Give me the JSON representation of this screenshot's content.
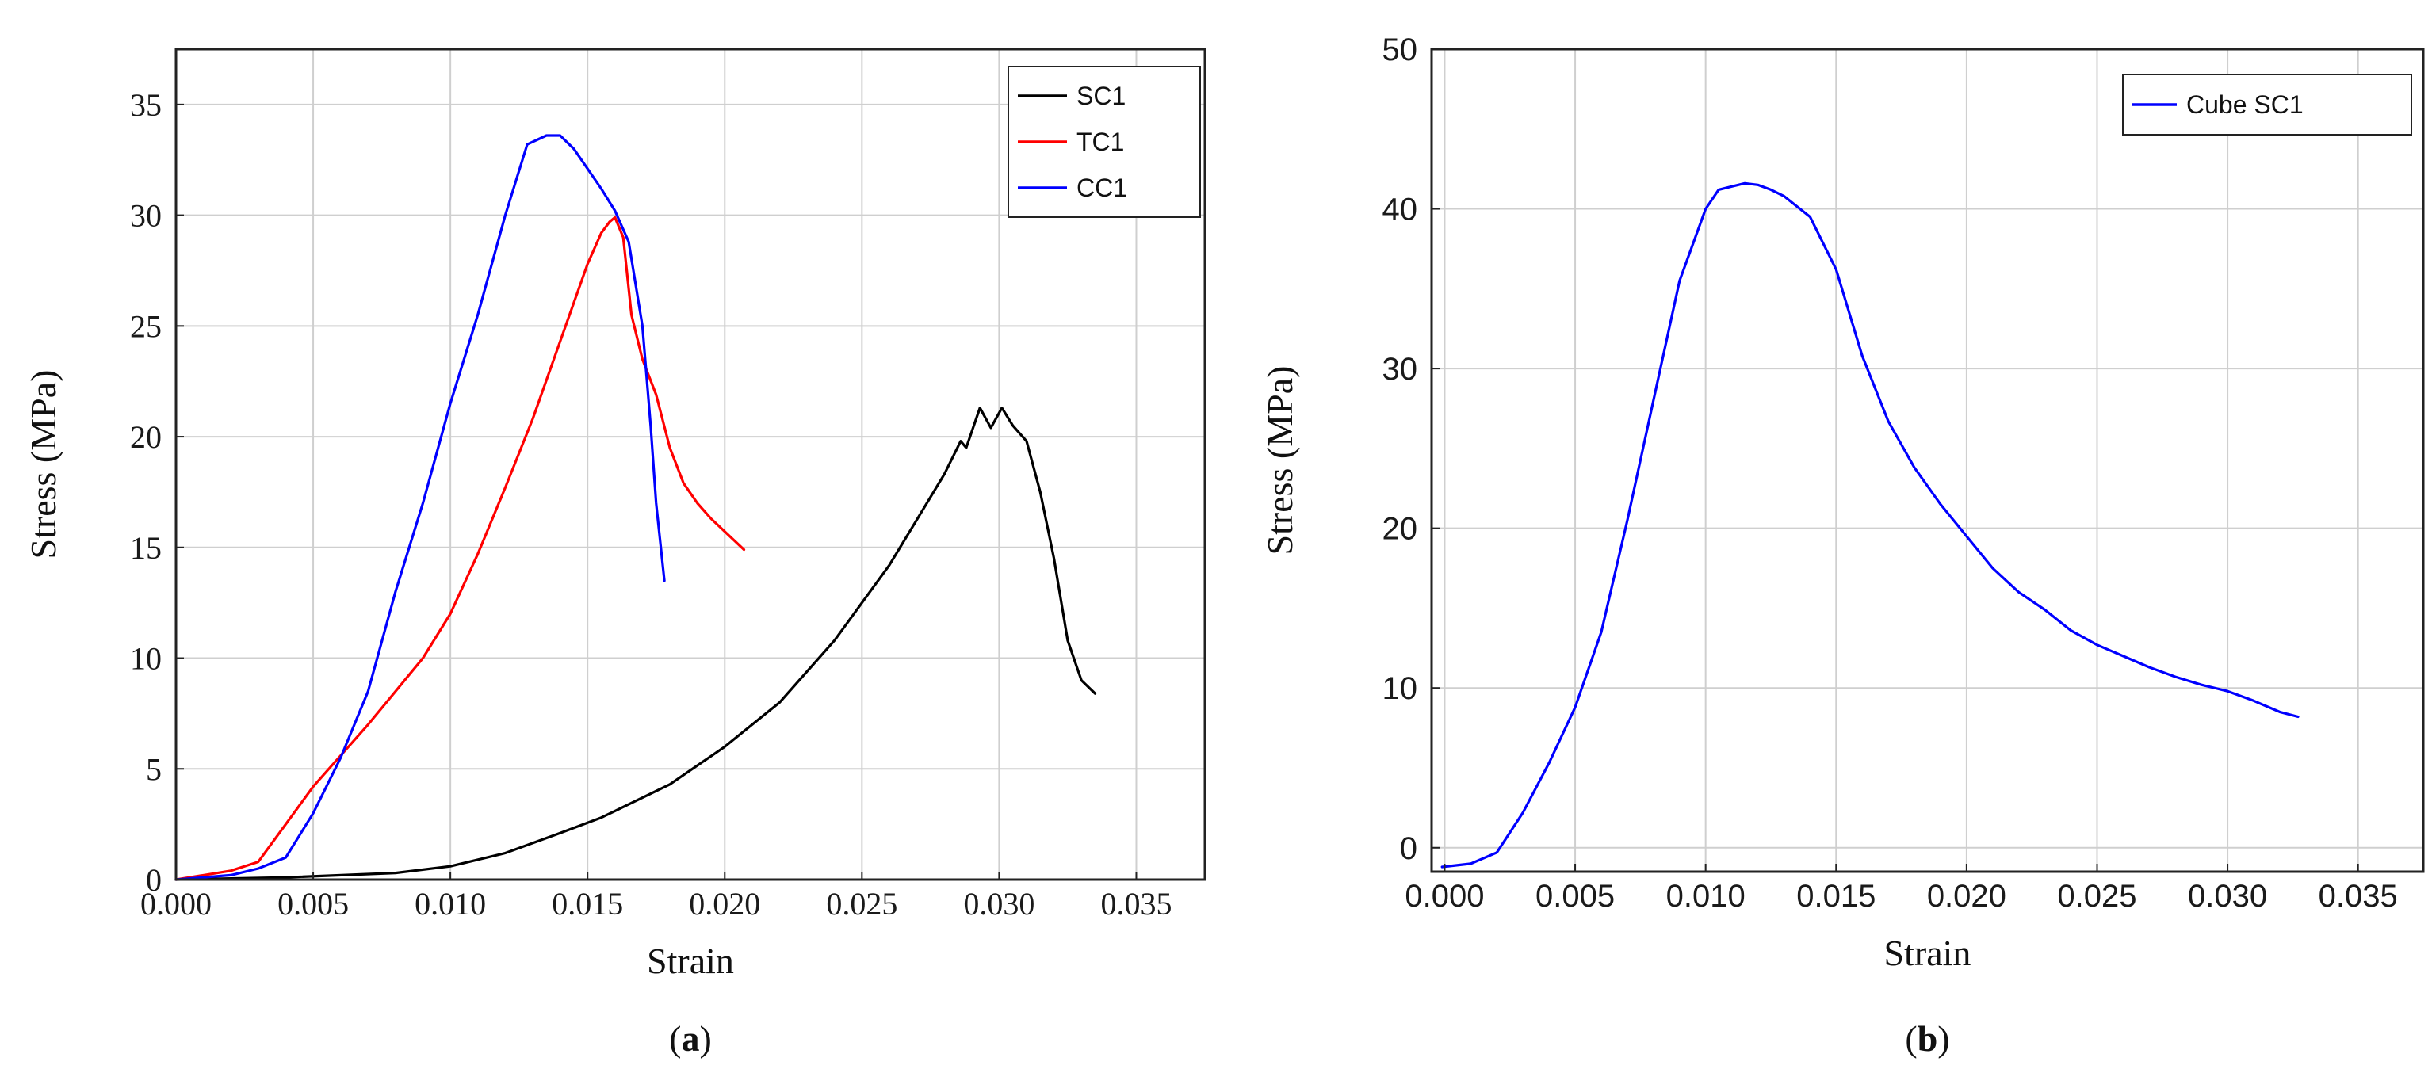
{
  "chart_data": [
    {
      "type": "line",
      "caption_open": "(",
      "caption_letter": "a",
      "caption_close": ")",
      "xlabel": "Strain",
      "ylabel": "Stress (MPa)",
      "xlim": [
        0,
        0.0375
      ],
      "ylim": [
        0,
        37.5
      ],
      "xticks": [
        "0.000",
        "0.005",
        "0.010",
        "0.015",
        "0.020",
        "0.025",
        "0.030",
        "0.035"
      ],
      "xtick_values": [
        0,
        0.005,
        0.01,
        0.015,
        0.02,
        0.025,
        0.03,
        0.035
      ],
      "yticks": [
        "0",
        "5",
        "10",
        "15",
        "20",
        "25",
        "30",
        "35"
      ],
      "ytick_values": [
        0,
        5,
        10,
        15,
        20,
        25,
        30,
        35
      ],
      "grid": true,
      "legend_position": "top-right",
      "series": [
        {
          "name": "SC1",
          "color": "#000000",
          "x": [
            0,
            0.004,
            0.008,
            0.01,
            0.012,
            0.014,
            0.0155,
            0.016,
            0.018,
            0.02,
            0.022,
            0.024,
            0.026,
            0.028,
            0.0286,
            0.0288,
            0.0293,
            0.0297,
            0.0301,
            0.0305,
            0.031,
            0.0315,
            0.032,
            0.0325,
            0.033,
            0.0335
          ],
          "y": [
            0,
            0.1,
            0.3,
            0.6,
            1.2,
            2.1,
            2.8,
            3.1,
            4.3,
            6.0,
            8.0,
            10.8,
            14.2,
            18.3,
            19.8,
            19.5,
            21.3,
            20.4,
            21.3,
            20.5,
            19.8,
            17.5,
            14.5,
            10.8,
            9.0,
            8.4
          ]
        },
        {
          "name": "TC1",
          "color": "#ff0000",
          "x": [
            0,
            0.001,
            0.002,
            0.003,
            0.004,
            0.005,
            0.006,
            0.007,
            0.008,
            0.009,
            0.01,
            0.011,
            0.012,
            0.013,
            0.014,
            0.015,
            0.0155,
            0.0158,
            0.016,
            0.0163,
            0.0166,
            0.017,
            0.0175,
            0.018,
            0.0185,
            0.019,
            0.0195,
            0.0207
          ],
          "y": [
            0,
            0.2,
            0.4,
            0.8,
            2.5,
            4.2,
            5.6,
            7.0,
            8.5,
            10.0,
            12.0,
            14.7,
            17.7,
            20.8,
            24.3,
            27.8,
            29.2,
            29.7,
            29.9,
            29.0,
            25.5,
            23.5,
            21.9,
            19.5,
            17.9,
            17.0,
            16.3,
            14.9
          ]
        },
        {
          "name": "CC1",
          "color": "#0000ff",
          "x": [
            0,
            0.002,
            0.003,
            0.004,
            0.005,
            0.006,
            0.007,
            0.008,
            0.009,
            0.01,
            0.011,
            0.012,
            0.0128,
            0.0135,
            0.014,
            0.0145,
            0.015,
            0.0155,
            0.016,
            0.0165,
            0.017,
            0.0173,
            0.0175,
            0.0178
          ],
          "y": [
            0,
            0.2,
            0.5,
            1.0,
            3.0,
            5.5,
            8.5,
            13.0,
            17.0,
            21.5,
            25.5,
            30.0,
            33.2,
            33.6,
            33.6,
            33.0,
            32.1,
            31.2,
            30.2,
            28.8,
            25.0,
            20.5,
            17.0,
            13.5
          ]
        }
      ]
    },
    {
      "type": "line",
      "caption_open": "(",
      "caption_letter": "b",
      "caption_close": ")",
      "xlabel": "Strain",
      "ylabel": "Stress (MPa)",
      "xlim": [
        -0.0005,
        0.0375
      ],
      "ylim": [
        -1.5,
        50
      ],
      "xticks": [
        "0.000",
        "0.005",
        "0.010",
        "0.015",
        "0.020",
        "0.025",
        "0.030",
        "0.035"
      ],
      "xtick_values": [
        0,
        0.005,
        0.01,
        0.015,
        0.02,
        0.025,
        0.03,
        0.035
      ],
      "yticks": [
        "0",
        "10",
        "20",
        "30",
        "40",
        "50"
      ],
      "ytick_values": [
        0,
        10,
        20,
        30,
        40,
        50
      ],
      "grid": true,
      "legend_position": "top-right",
      "series": [
        {
          "name": "Cube SC1",
          "color": "#0000ff",
          "x": [
            -0.0001,
            0.001,
            0.002,
            0.003,
            0.004,
            0.005,
            0.006,
            0.007,
            0.008,
            0.009,
            0.01,
            0.0105,
            0.011,
            0.0115,
            0.012,
            0.0125,
            0.013,
            0.014,
            0.015,
            0.016,
            0.017,
            0.018,
            0.019,
            0.02,
            0.021,
            0.022,
            0.023,
            0.024,
            0.025,
            0.026,
            0.027,
            0.028,
            0.029,
            0.03,
            0.031,
            0.032,
            0.0327
          ],
          "y": [
            -1.2,
            -1.0,
            -0.3,
            2.2,
            5.3,
            8.8,
            13.5,
            20.5,
            28.0,
            35.5,
            40.0,
            41.2,
            41.4,
            41.6,
            41.5,
            41.2,
            40.8,
            39.5,
            36.2,
            30.8,
            26.7,
            23.8,
            21.5,
            19.5,
            17.5,
            16.0,
            14.9,
            13.6,
            12.7,
            12.0,
            11.3,
            10.7,
            10.2,
            9.8,
            9.2,
            8.5,
            8.2
          ]
        }
      ]
    }
  ]
}
